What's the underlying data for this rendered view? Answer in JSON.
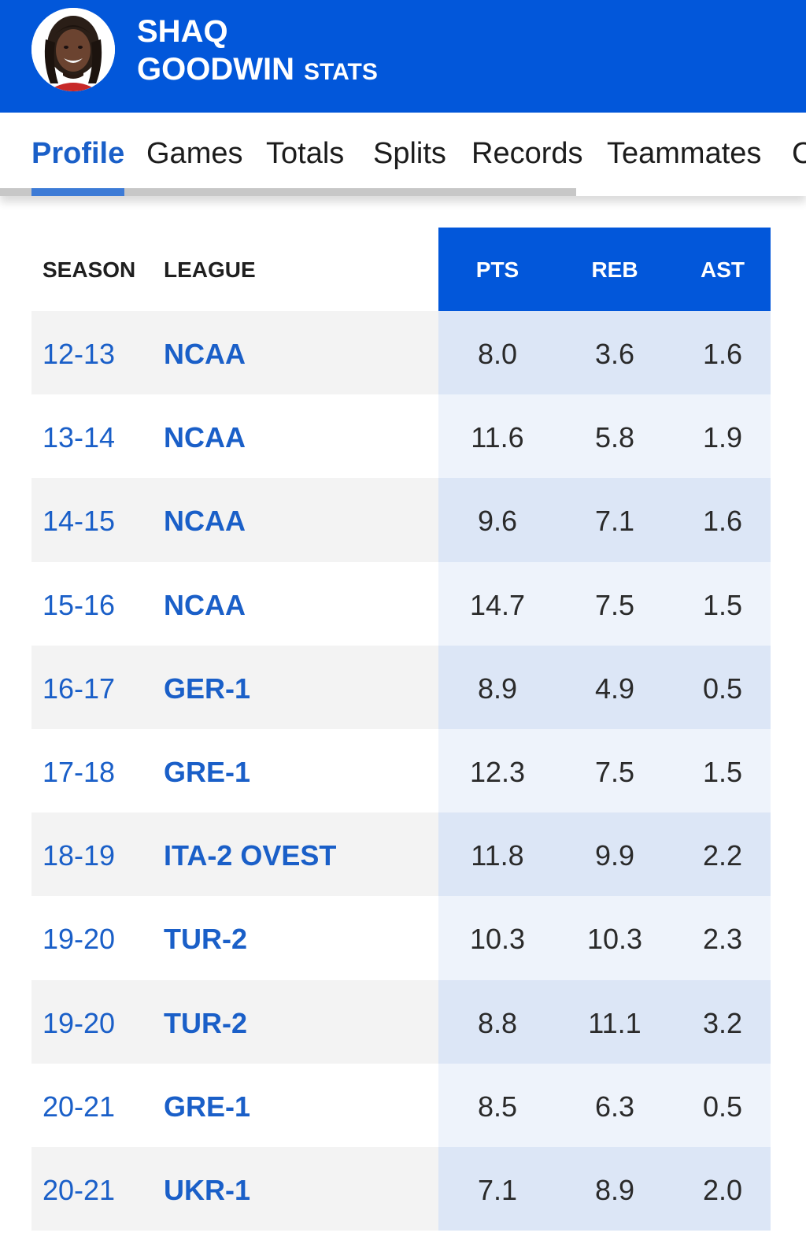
{
  "header": {
    "first_name": "SHAQ",
    "last_name": "GOODWIN",
    "title_suffix": "STATS",
    "brand_color": "#0257da"
  },
  "tabs": [
    {
      "label": "Profile",
      "active": true
    },
    {
      "label": "Games",
      "active": false
    },
    {
      "label": "Totals",
      "active": false
    },
    {
      "label": "Splits",
      "active": false
    },
    {
      "label": "Records",
      "active": false
    },
    {
      "label": "Teammates",
      "active": false
    },
    {
      "label": "C",
      "active": false
    }
  ],
  "table": {
    "columns": [
      "SEASON",
      "LEAGUE",
      "PTS",
      "REB",
      "AST"
    ],
    "rows": [
      {
        "season": "12-13",
        "league": "NCAA",
        "pts": "8.0",
        "reb": "3.6",
        "ast": "1.6"
      },
      {
        "season": "13-14",
        "league": "NCAA",
        "pts": "11.6",
        "reb": "5.8",
        "ast": "1.9"
      },
      {
        "season": "14-15",
        "league": "NCAA",
        "pts": "9.6",
        "reb": "7.1",
        "ast": "1.6"
      },
      {
        "season": "15-16",
        "league": "NCAA",
        "pts": "14.7",
        "reb": "7.5",
        "ast": "1.5"
      },
      {
        "season": "16-17",
        "league": "GER-1",
        "pts": "8.9",
        "reb": "4.9",
        "ast": "0.5"
      },
      {
        "season": "17-18",
        "league": "GRE-1",
        "pts": "12.3",
        "reb": "7.5",
        "ast": "1.5"
      },
      {
        "season": "18-19",
        "league": "ITA-2 OVEST",
        "pts": "11.8",
        "reb": "9.9",
        "ast": "2.2"
      },
      {
        "season": "19-20",
        "league": "TUR-2",
        "pts": "10.3",
        "reb": "10.3",
        "ast": "2.3"
      },
      {
        "season": "19-20",
        "league": "TUR-2",
        "pts": "8.8",
        "reb": "11.1",
        "ast": "3.2"
      },
      {
        "season": "20-21",
        "league": "GRE-1",
        "pts": "8.5",
        "reb": "6.3",
        "ast": "0.5"
      },
      {
        "season": "20-21",
        "league": "UKR-1",
        "pts": "7.1",
        "reb": "8.9",
        "ast": "2.0"
      }
    ]
  }
}
